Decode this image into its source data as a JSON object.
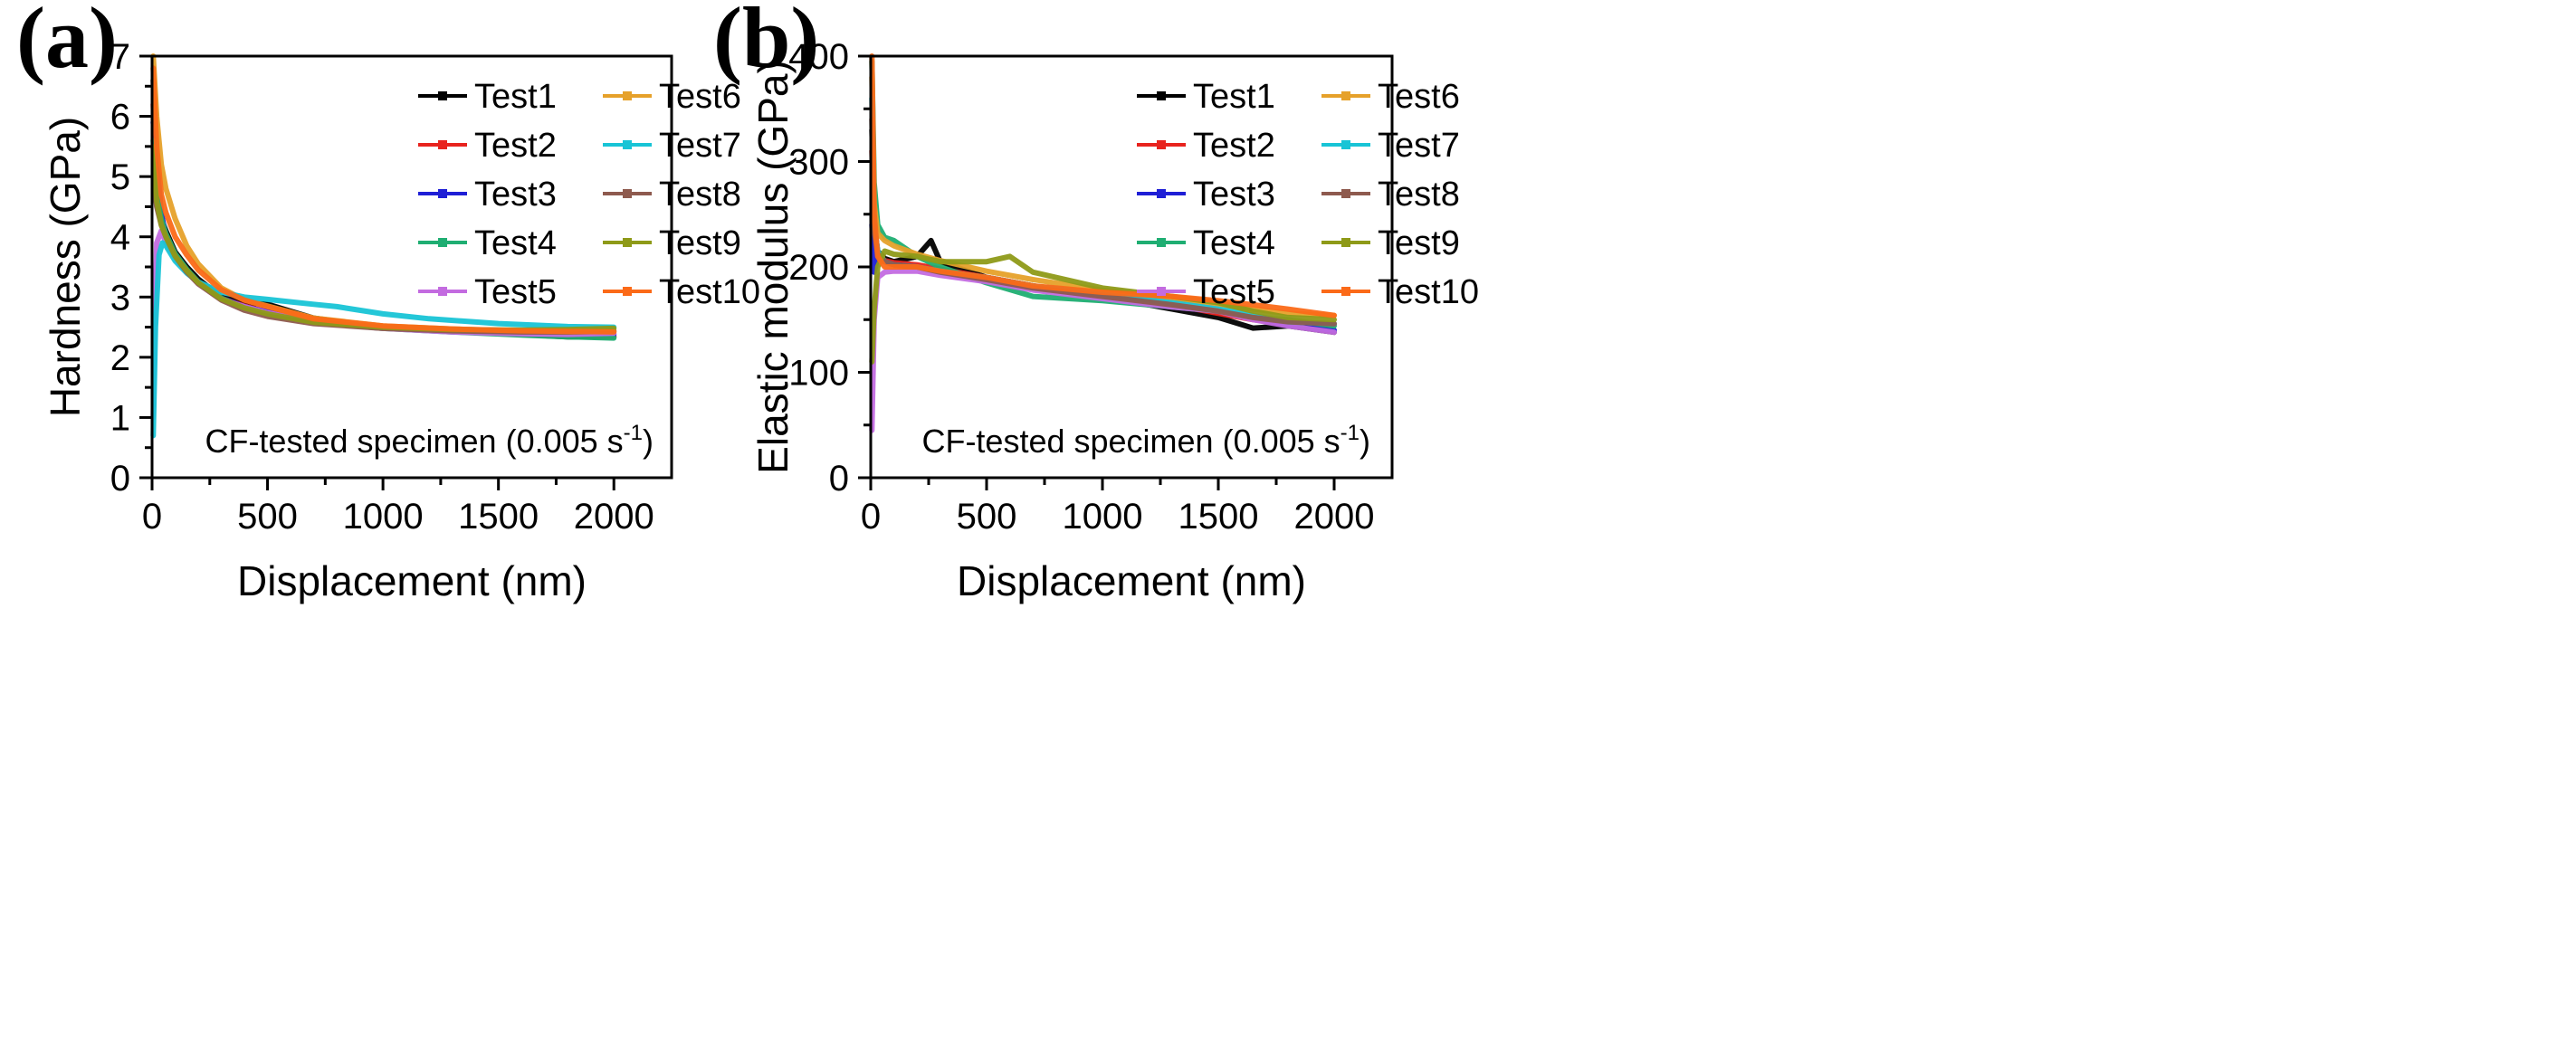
{
  "chart_data": [
    {
      "type": "line",
      "panel_label": "(a)",
      "title": "",
      "xlabel": "Displacement (nm)",
      "ylabel": "Hardness (GPa)",
      "xlim": [
        0,
        2250
      ],
      "ylim": [
        0,
        7
      ],
      "xticks": [
        0,
        500,
        1000,
        1500,
        2000
      ],
      "yticks": [
        0,
        1,
        2,
        3,
        4,
        5,
        6,
        7
      ],
      "xtick_labels": [
        "0",
        "500",
        "1000",
        "1500",
        "2000"
      ],
      "ytick_labels": [
        "0",
        "1",
        "2",
        "3",
        "4",
        "5",
        "6",
        "7"
      ],
      "grid": false,
      "legend_position": "top-right",
      "annotation": "CF-tested specimen (0.005 s",
      "annotation_sup": "-1",
      "annotation_close": ")",
      "series": [
        {
          "name": "Test1",
          "color": "#000000",
          "x": [
            5,
            20,
            40,
            60,
            100,
            150,
            200,
            300,
            400,
            500,
            700,
            1000,
            1300,
            1600,
            1800,
            2000
          ],
          "y": [
            6.6,
            4.8,
            4.3,
            4.1,
            3.75,
            3.5,
            3.3,
            3.0,
            2.9,
            2.88,
            2.65,
            2.5,
            2.45,
            2.38,
            2.34,
            2.34
          ]
        },
        {
          "name": "Test2",
          "color": "#e8231e",
          "x": [
            5,
            20,
            40,
            60,
            100,
            150,
            200,
            300,
            400,
            500,
            700,
            1000,
            1300,
            1600,
            1800,
            2000
          ],
          "y": [
            6.2,
            4.6,
            4.2,
            4.0,
            3.7,
            3.45,
            3.25,
            2.98,
            2.85,
            2.75,
            2.6,
            2.5,
            2.45,
            2.4,
            2.38,
            2.34
          ]
        },
        {
          "name": "Test3",
          "color": "#1f1fd6",
          "x": [
            5,
            20,
            40,
            60,
            100,
            150,
            200,
            300,
            400,
            500,
            700,
            1000,
            1300,
            1600,
            1800,
            2000
          ],
          "y": [
            5.9,
            5.3,
            4.4,
            4.0,
            3.7,
            3.45,
            3.25,
            2.98,
            2.84,
            2.75,
            2.6,
            2.5,
            2.44,
            2.4,
            2.38,
            2.38
          ]
        },
        {
          "name": "Test4",
          "color": "#1fae72",
          "x": [
            5,
            20,
            40,
            60,
            100,
            150,
            200,
            300,
            400,
            500,
            700,
            1000,
            1300,
            1600,
            1800,
            2000
          ],
          "y": [
            5.6,
            4.7,
            4.3,
            4.05,
            3.72,
            3.46,
            3.25,
            2.98,
            2.82,
            2.72,
            2.58,
            2.48,
            2.42,
            2.37,
            2.34,
            2.32
          ]
        },
        {
          "name": "Test5",
          "color": "#c36be0",
          "x": [
            5,
            20,
            40,
            60,
            100,
            150,
            200,
            300,
            400,
            500,
            700,
            1000,
            1300,
            1600,
            1800,
            2000
          ],
          "y": [
            1.0,
            3.9,
            4.1,
            3.9,
            3.65,
            3.42,
            3.22,
            2.96,
            2.84,
            2.74,
            2.58,
            2.48,
            2.42,
            2.39,
            2.38,
            2.4
          ]
        },
        {
          "name": "Test6",
          "color": "#e6a12a",
          "x": [
            5,
            20,
            40,
            60,
            100,
            150,
            200,
            300,
            400,
            500,
            700,
            1000,
            1300,
            1600,
            1800,
            2000
          ],
          "y": [
            7.0,
            6.0,
            5.2,
            4.8,
            4.3,
            3.85,
            3.55,
            3.15,
            2.95,
            2.85,
            2.65,
            2.52,
            2.47,
            2.43,
            2.42,
            2.44
          ]
        },
        {
          "name": "Test7",
          "color": "#18c4d6",
          "x": [
            5,
            15,
            30,
            45,
            60,
            100,
            150,
            200,
            300,
            400,
            500,
            600,
            700,
            800,
            1000,
            1200,
            1500,
            1800,
            2000
          ],
          "y": [
            0.7,
            2.5,
            3.7,
            3.9,
            3.85,
            3.6,
            3.4,
            3.25,
            3.08,
            3.0,
            2.96,
            2.92,
            2.88,
            2.84,
            2.72,
            2.64,
            2.56,
            2.51,
            2.5
          ]
        },
        {
          "name": "Test8",
          "color": "#8e5a4e",
          "x": [
            5,
            20,
            40,
            60,
            100,
            150,
            200,
            300,
            400,
            500,
            700,
            1000,
            1300,
            1600,
            1800,
            2000
          ],
          "y": [
            5.0,
            4.5,
            4.2,
            4.0,
            3.68,
            3.42,
            3.22,
            2.95,
            2.78,
            2.68,
            2.56,
            2.48,
            2.44,
            2.42,
            2.42,
            2.43
          ]
        },
        {
          "name": "Test9",
          "color": "#8e9a18",
          "x": [
            5,
            20,
            40,
            60,
            100,
            150,
            200,
            300,
            400,
            500,
            700,
            1000,
            1300,
            1600,
            1800,
            2000
          ],
          "y": [
            5.5,
            4.6,
            4.2,
            4.0,
            3.68,
            3.44,
            3.24,
            2.97,
            2.82,
            2.72,
            2.58,
            2.5,
            2.46,
            2.45,
            2.46,
            2.48
          ]
        },
        {
          "name": "Test10",
          "color": "#fb6a18",
          "x": [
            5,
            20,
            40,
            60,
            100,
            150,
            200,
            300,
            400,
            500,
            700,
            1000,
            1300,
            1600,
            1800,
            2000
          ],
          "y": [
            6.8,
            5.5,
            4.7,
            4.4,
            4.0,
            3.7,
            3.45,
            3.12,
            2.95,
            2.84,
            2.64,
            2.52,
            2.47,
            2.44,
            2.43,
            2.42
          ]
        }
      ]
    },
    {
      "type": "line",
      "panel_label": "(b)",
      "title": "",
      "xlabel": "Displacement (nm)",
      "ylabel": "Elastic modulus (GPa)",
      "xlim": [
        0,
        2250
      ],
      "ylim": [
        0,
        400
      ],
      "xticks": [
        0,
        500,
        1000,
        1500,
        2000
      ],
      "yticks": [
        0,
        100,
        200,
        300,
        400
      ],
      "xtick_labels": [
        "0",
        "500",
        "1000",
        "1500",
        "2000"
      ],
      "ytick_labels": [
        "0",
        "100",
        "200",
        "300",
        "400"
      ],
      "grid": false,
      "legend_position": "top-right",
      "annotation": "CF-tested specimen (0.005 s",
      "annotation_sup": "-1",
      "annotation_close": ")",
      "series": [
        {
          "name": "Test1",
          "color": "#000000",
          "x": [
            5,
            15,
            30,
            60,
            100,
            200,
            260,
            300,
            500,
            700,
            1000,
            1300,
            1500,
            1650,
            1800,
            2000
          ],
          "y": [
            330,
            240,
            215,
            208,
            205,
            210,
            225,
            205,
            190,
            182,
            172,
            160,
            152,
            142,
            144,
            138
          ]
        },
        {
          "name": "Test2",
          "color": "#e8231e",
          "x": [
            5,
            15,
            30,
            60,
            100,
            200,
            300,
            500,
            700,
            1000,
            1300,
            1500,
            1650,
            1800,
            2000
          ],
          "y": [
            310,
            230,
            212,
            206,
            204,
            202,
            198,
            190,
            182,
            174,
            164,
            156,
            150,
            146,
            146
          ]
        },
        {
          "name": "Test3",
          "color": "#1f1fd6",
          "x": [
            5,
            15,
            30,
            60,
            100,
            200,
            300,
            500,
            700,
            1000,
            1300,
            1500,
            1650,
            1800,
            2000
          ],
          "y": [
            240,
            195,
            210,
            205,
            202,
            200,
            196,
            188,
            180,
            172,
            164,
            158,
            152,
            145,
            140
          ]
        },
        {
          "name": "Test4",
          "color": "#1fae72",
          "x": [
            5,
            15,
            30,
            60,
            100,
            200,
            300,
            500,
            700,
            1000,
            1300,
            1500,
            1650,
            1800,
            2000
          ],
          "y": [
            395,
            280,
            240,
            228,
            225,
            210,
            200,
            185,
            172,
            168,
            162,
            158,
            152,
            150,
            144
          ]
        },
        {
          "name": "Test5",
          "color": "#c36be0",
          "x": [
            5,
            15,
            30,
            60,
            100,
            200,
            300,
            500,
            700,
            1000,
            1300,
            1500,
            1650,
            1800,
            2000
          ],
          "y": [
            45,
            150,
            190,
            195,
            196,
            196,
            192,
            186,
            178,
            170,
            162,
            158,
            150,
            144,
            138
          ]
        },
        {
          "name": "Test6",
          "color": "#e6a12a",
          "x": [
            5,
            15,
            30,
            60,
            100,
            200,
            300,
            500,
            700,
            1000,
            1300,
            1500,
            1650,
            1800,
            2000
          ],
          "y": [
            380,
            260,
            232,
            225,
            220,
            212,
            206,
            196,
            188,
            178,
            170,
            164,
            160,
            156,
            154
          ]
        },
        {
          "name": "Test7",
          "color": "#18c4d6",
          "x": [
            5,
            15,
            30,
            60,
            100,
            200,
            300,
            500,
            700,
            1000,
            1300,
            1500,
            1650,
            1800,
            2000
          ],
          "y": [
            360,
            240,
            215,
            205,
            202,
            200,
            196,
            190,
            182,
            174,
            166,
            160,
            154,
            148,
            146
          ]
        },
        {
          "name": "Test8",
          "color": "#8e5a4e",
          "x": [
            5,
            15,
            30,
            60,
            100,
            200,
            300,
            500,
            700,
            1000,
            1300,
            1500,
            1650,
            1800,
            2000
          ],
          "y": [
            340,
            235,
            212,
            205,
            202,
            200,
            195,
            188,
            180,
            172,
            164,
            158,
            152,
            148,
            146
          ]
        },
        {
          "name": "Test9",
          "color": "#8e9a18",
          "x": [
            5,
            15,
            30,
            60,
            100,
            200,
            300,
            500,
            600,
            700,
            1000,
            1300,
            1500,
            1650,
            1800,
            2000
          ],
          "y": [
            110,
            160,
            200,
            215,
            212,
            210,
            205,
            205,
            210,
            195,
            180,
            172,
            166,
            158,
            152,
            150
          ]
        },
        {
          "name": "Test10",
          "color": "#fb6a18",
          "x": [
            5,
            15,
            30,
            60,
            100,
            200,
            300,
            500,
            700,
            1000,
            1300,
            1500,
            1650,
            1800,
            2000
          ],
          "y": [
            400,
            250,
            210,
            200,
            200,
            200,
            196,
            190,
            182,
            176,
            172,
            168,
            164,
            160,
            154
          ]
        }
      ]
    }
  ]
}
